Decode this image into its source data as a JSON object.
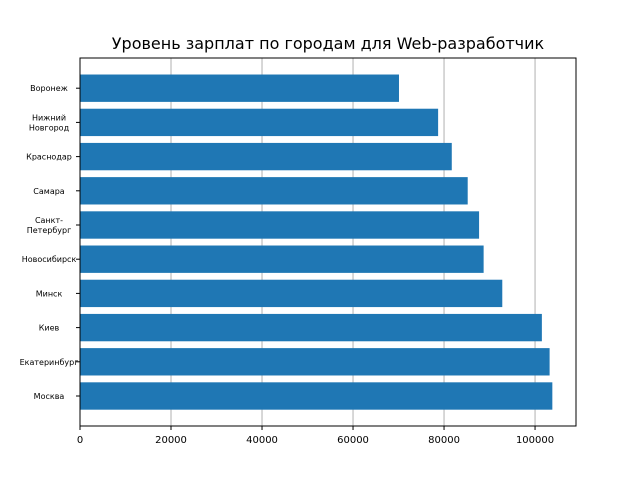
{
  "chart_data": {
    "type": "bar",
    "orientation": "horizontal",
    "title": "Уровень зарплат по городам для Web-разработчик",
    "xlabel": "",
    "ylabel": "",
    "categories": [
      "Москва",
      "Екатеринбург",
      "Киев",
      "Минск",
      "Новосибирск",
      "Санкт-\nПетербург",
      "Самара",
      "Краснодар",
      "Нижний\nНовгород",
      "Воронеж"
    ],
    "values": [
      103800,
      103200,
      101500,
      92800,
      88700,
      87700,
      85200,
      81700,
      78700,
      70100
    ],
    "xlim": [
      0,
      109000
    ],
    "xticks": [
      "0",
      "20000",
      "40000",
      "60000",
      "80000",
      "100000"
    ],
    "grid": "x",
    "bar_color": "#1f77b4",
    "grid_color": "#b0b0b0"
  }
}
